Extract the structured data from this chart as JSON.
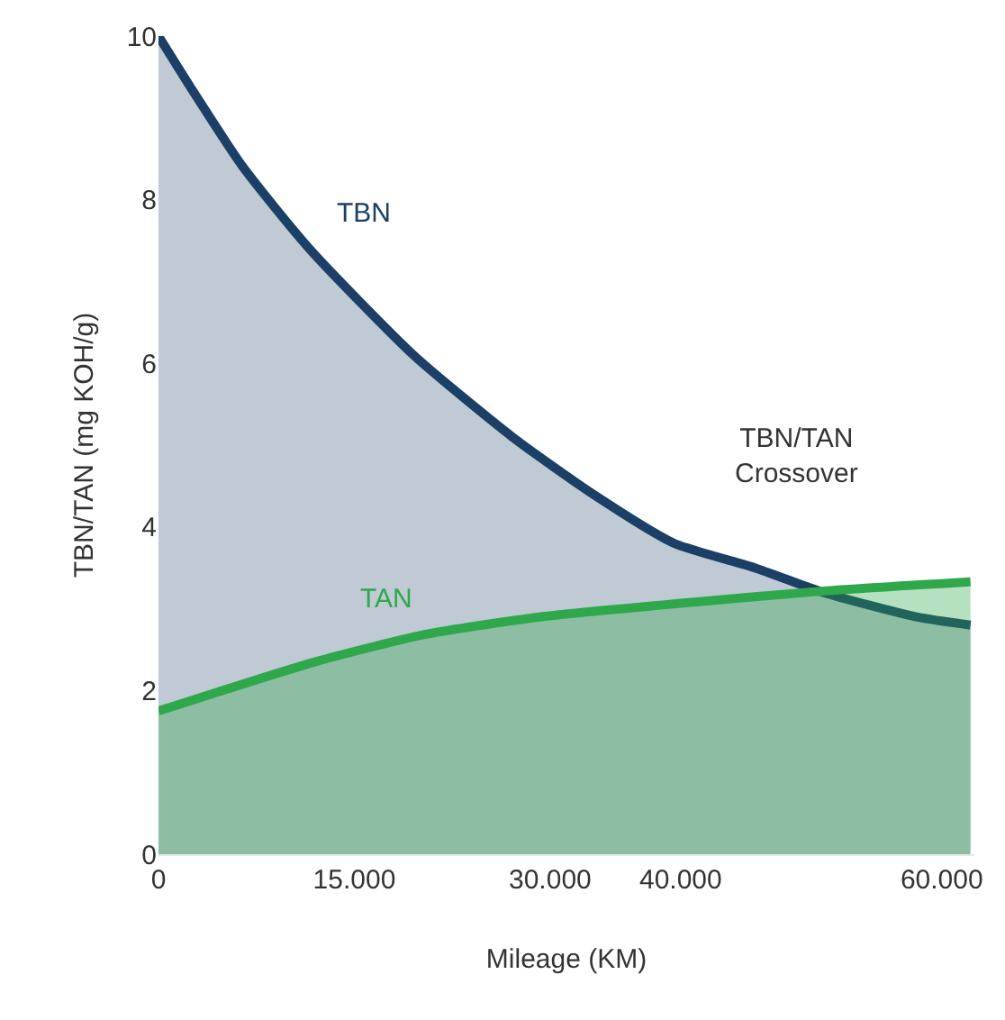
{
  "chart_data": {
    "type": "area",
    "xlabel": "Mileage (KM)",
    "ylabel": "TBN/TAN (mg KOH/g)",
    "xlim": [
      0,
      62500
    ],
    "ylim": [
      0,
      10
    ],
    "xticks": [
      0,
      {
        "value": 15000,
        "label": "15.000"
      },
      {
        "value": 30000,
        "label": "30.000"
      },
      {
        "value": 40000,
        "label": "40.000"
      },
      {
        "value": 60000,
        "label": "60.000"
      }
    ],
    "yticks": [
      0,
      2,
      4,
      6,
      8,
      10
    ],
    "series": [
      {
        "name": "TBN",
        "color": "#1b3f66",
        "x": [
          0,
          2750,
          6470,
          11560,
          19540,
          27110,
          33300,
          39500,
          45690,
          50920,
          58070,
          62200
        ],
        "values": [
          10,
          9.3,
          8.4,
          7.4,
          6.1,
          5.1,
          4.4,
          3.8,
          3.5,
          3.2,
          2.9,
          2.8
        ]
      },
      {
        "name": "TAN",
        "color": "#2ea84a",
        "x": [
          0,
          11970,
          20230,
          29170,
          40180,
          51190,
          62200
        ],
        "values": [
          1.75,
          2.35,
          2.68,
          2.9,
          3.07,
          3.22,
          3.33
        ]
      }
    ],
    "annotations": [
      "TBN/TAN Crossover"
    ],
    "grid": false,
    "legend": false
  }
}
